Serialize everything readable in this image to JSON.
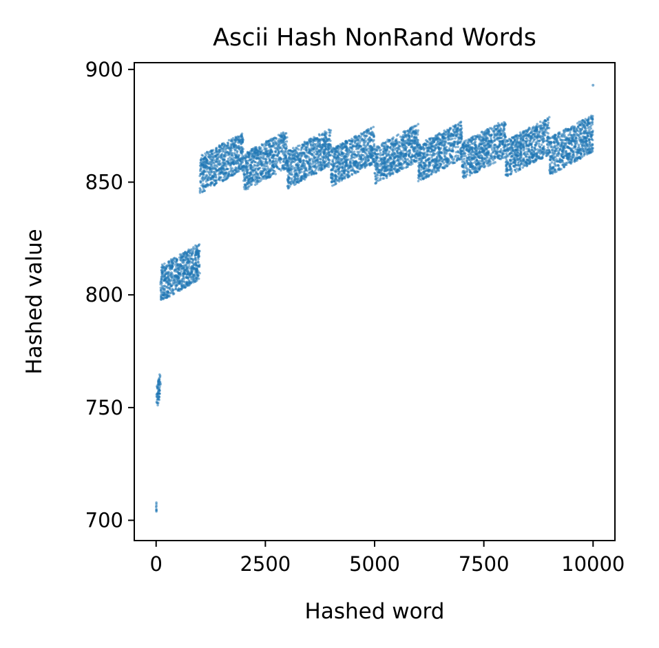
{
  "chart_data": {
    "type": "scatter",
    "title": "Ascii Hash NonRand Words",
    "xlabel": "Hashed word",
    "ylabel": "Hashed value",
    "xlim": [
      -500,
      10500
    ],
    "ylim": [
      691,
      903
    ],
    "xticks": [
      0,
      2500,
      5000,
      7500,
      10000
    ],
    "yticks": [
      700,
      750,
      800,
      850,
      900
    ],
    "grid": false,
    "legend": "none",
    "series": [
      {
        "color": "#1f77b4",
        "point_count": 10000,
        "groups": [
          {
            "x_range": [
              0,
              9
            ],
            "y_range": [
              701,
              709
            ]
          },
          {
            "x_range": [
              10,
              99
            ],
            "y_range": [
              749,
              766
            ]
          },
          {
            "x_range": [
              100,
              999
            ],
            "y_range": [
              797,
              823
            ]
          },
          {
            "x_range": [
              1000,
              1999
            ],
            "y_range": [
              845,
              872
            ]
          },
          {
            "x_range": [
              2000,
              2999
            ],
            "y_range": [
              846,
              873
            ]
          },
          {
            "x_range": [
              3000,
              3999
            ],
            "y_range": [
              847,
              874
            ]
          },
          {
            "x_range": [
              4000,
              4999
            ],
            "y_range": [
              848,
              875
            ]
          },
          {
            "x_range": [
              5000,
              5999
            ],
            "y_range": [
              849,
              876
            ]
          },
          {
            "x_range": [
              6000,
              6999
            ],
            "y_range": [
              850,
              877
            ]
          },
          {
            "x_range": [
              7000,
              7999
            ],
            "y_range": [
              851,
              878
            ]
          },
          {
            "x_range": [
              8000,
              8999
            ],
            "y_range": [
              852,
              879
            ]
          },
          {
            "x_range": [
              9000,
              9998
            ],
            "y_range": [
              853,
              880
            ]
          }
        ],
        "outliers": [
          {
            "x": 9999,
            "y": 893
          }
        ]
      }
    ]
  }
}
